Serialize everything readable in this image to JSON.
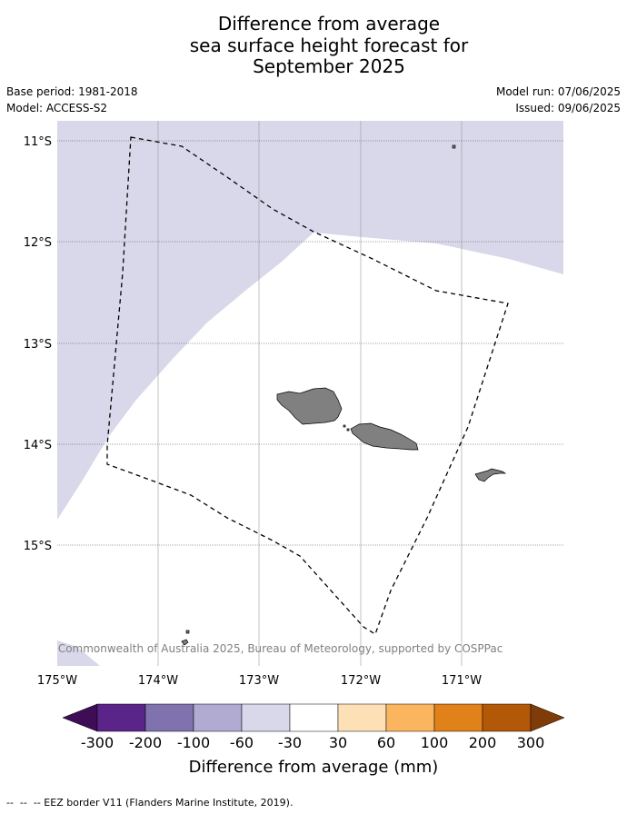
{
  "title": [
    "Difference from average",
    "sea surface height forecast for",
    "September 2025"
  ],
  "meta": {
    "base_period": "Base period: 1981-2018",
    "model": "Model: ACCESS-S2",
    "model_run": "Model run: 07/06/2025",
    "issued": "Issued: 09/06/2025"
  },
  "map": {
    "lon_labels": [
      "175°W",
      "174°W",
      "173°W",
      "172°W",
      "171°W"
    ],
    "lat_labels": [
      "11°S",
      "12°S",
      "13°S",
      "14°S",
      "15°S"
    ],
    "extent": {
      "lon_min": -175.0,
      "lon_max": -170.0,
      "lat_min": -16.2,
      "lat_max": -10.8
    },
    "credit": "© Commonwealth of Australia 2025, Bureau of Meteorology, supported by COSPPac",
    "land_color": "#808080",
    "shaded_category": "-60 to -30 mm",
    "shaded_color": "#d8d8ea",
    "eez_color": "#000000"
  },
  "colorbar": {
    "title": "Difference from average (mm)",
    "labels": [
      "-300",
      "-200",
      "-100",
      "-60",
      "-30",
      "30",
      "60",
      "100",
      "200",
      "300"
    ],
    "colors": [
      "#3f0d56",
      "#5b2489",
      "#8072ae",
      "#b1aad2",
      "#d8d8ea",
      "#ffffff",
      "#fee0b6",
      "#fbb55f",
      "#e1811a",
      "#b35806",
      "#7f3b08"
    ]
  },
  "footer": "--  --  -- EEZ border V11 (Flanders Marine Institute, 2019)."
}
